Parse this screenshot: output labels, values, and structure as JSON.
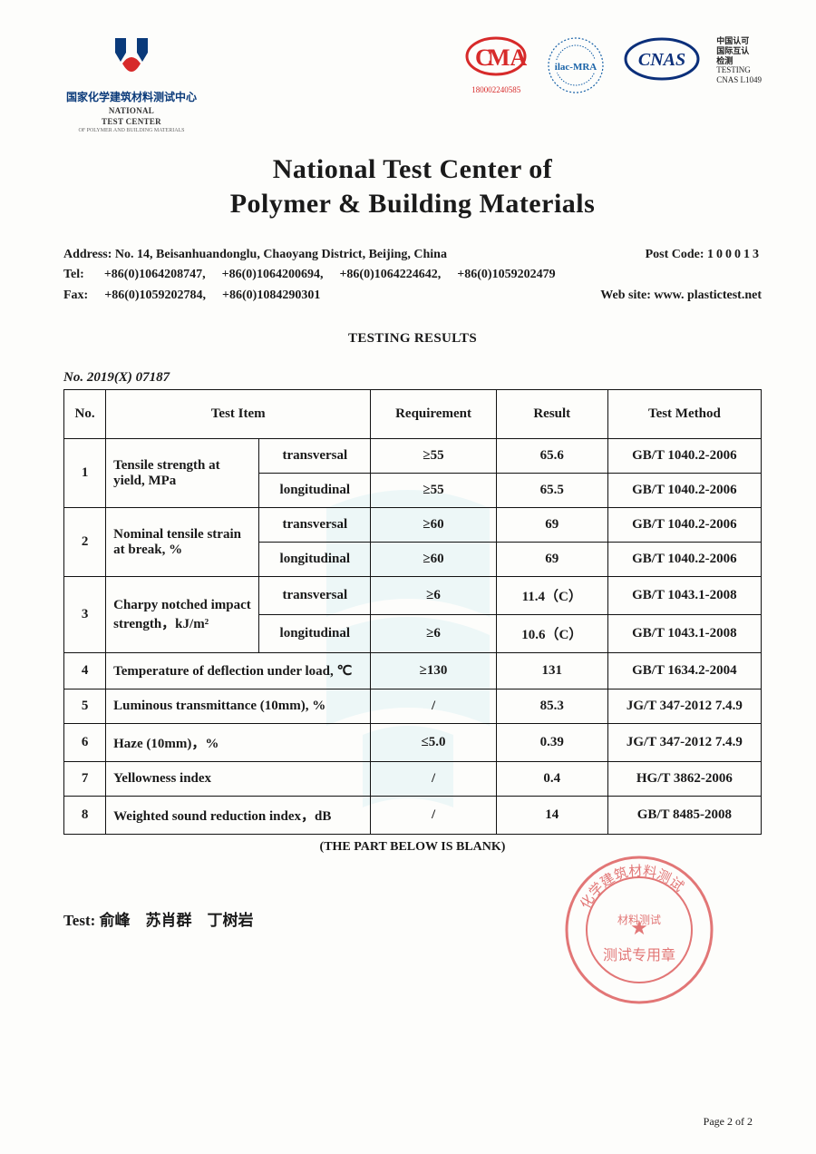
{
  "header": {
    "left_logo": {
      "cn": "国家化学建筑材料测试中心",
      "en_line1": "NATIONAL",
      "en_line2": "TEST CENTER",
      "en_sub": "OF POLYMER AND BUILDING MATERIALS"
    },
    "cma": {
      "label": "MA",
      "code": "180002240585"
    },
    "ilac": "ilac-MRA",
    "cnas": {
      "logo_text": "CNAS",
      "cn1": "中国认可",
      "cn2": "国际互认",
      "cn3": "检测",
      "en1": "TESTING",
      "en2": "CNAS L1049"
    }
  },
  "title": {
    "line1": "National Test Center of",
    "line2": "Polymer & Building Materials"
  },
  "contact": {
    "address_label": "Address:",
    "address": "No. 14, Beisanhuandonglu, Chaoyang District, Beijing, China",
    "postcode_label": "Post Code:",
    "postcode": "100013",
    "tel_label": "Tel:",
    "tel1": "+86(0)1064208747,",
    "tel2": "+86(0)1064200694,",
    "tel3": "+86(0)1064224642,",
    "tel4": "+86(0)1059202479",
    "fax_label": "Fax:",
    "fax1": "+86(0)1059202784,",
    "fax2": "+86(0)1084290301",
    "web_label": "Web site:",
    "web": "www. plastictest.net"
  },
  "section_heading": "TESTING RESULTS",
  "doc_no": "No. 2019(X) 07187",
  "table": {
    "headers": {
      "no": "No.",
      "item": "Test Item",
      "req": "Requirement",
      "res": "Result",
      "method": "Test Method"
    },
    "rows": [
      {
        "no": "1",
        "item": "Tensile strength at yield, MPa",
        "sub": [
          {
            "dir": "transversal",
            "req": "≥55",
            "res": "65.6",
            "method": "GB/T 1040.2-2006"
          },
          {
            "dir": "longitudinal",
            "req": "≥55",
            "res": "65.5",
            "method": "GB/T 1040.2-2006"
          }
        ]
      },
      {
        "no": "2",
        "item": "Nominal tensile strain at break, %",
        "sub": [
          {
            "dir": "transversal",
            "req": "≥60",
            "res": "69",
            "method": "GB/T 1040.2-2006"
          },
          {
            "dir": "longitudinal",
            "req": "≥60",
            "res": "69",
            "method": "GB/T 1040.2-2006"
          }
        ]
      },
      {
        "no": "3",
        "item": "Charpy notched impact strength，kJ/m²",
        "sub": [
          {
            "dir": "transversal",
            "req": "≥6",
            "res": "11.4（C）",
            "method": "GB/T 1043.1-2008"
          },
          {
            "dir": "longitudinal",
            "req": "≥6",
            "res": "10.6（C）",
            "method": "GB/T 1043.1-2008"
          }
        ]
      },
      {
        "no": "4",
        "item": "Temperature of deflection under load, ℃",
        "req": "≥130",
        "res": "131",
        "method": "GB/T 1634.2-2004"
      },
      {
        "no": "5",
        "item": "Luminous transmittance (10mm), %",
        "req": "/",
        "res": "85.3",
        "method": "JG/T 347-2012 7.4.9"
      },
      {
        "no": "6",
        "item": "Haze (10mm)，%",
        "req": "≤5.0",
        "res": "0.39",
        "method": "JG/T 347-2012 7.4.9"
      },
      {
        "no": "7",
        "item": "Yellowness index",
        "req": "/",
        "res": "0.4",
        "method": "HG/T 3862-2006"
      },
      {
        "no": "8",
        "item": "Weighted sound reduction index，dB",
        "req": "/",
        "res": "14",
        "method": "GB/T 8485-2008"
      }
    ]
  },
  "blank_note": "(THE PART BELOW IS BLANK)",
  "testers_label": "Test:",
  "testers": "俞峰　苏肖群　丁树岩",
  "stamp": {
    "outer1": "化学建筑材料测试",
    "outer2": "材料测试",
    "inner": "测试专用章"
  },
  "footer": "Page 2 of 2",
  "colors": {
    "ink": "#1a1a1a",
    "logo_blue": "#0a3a7a",
    "cma_red": "#d72a2a",
    "ilac_blue": "#1a63a8",
    "cnas_blue": "#0b2f7a",
    "watermark": "#bfe7ef",
    "stamp": "#d94a4a"
  }
}
